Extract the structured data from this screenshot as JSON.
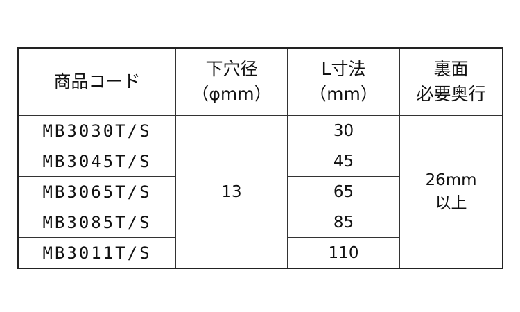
{
  "headers": {
    "code": "商品コード",
    "hole_line1": "下穴径",
    "hole_line2": "（φmm）",
    "length_line1": "L寸法",
    "length_line2": "（mm）",
    "depth_line1": "裏面",
    "depth_line2": "必要奥行"
  },
  "rows": [
    {
      "code": "MB3030T/S",
      "length": "30"
    },
    {
      "code": "MB3045T/S",
      "length": "45"
    },
    {
      "code": "MB3065T/S",
      "length": "65"
    },
    {
      "code": "MB3085T/S",
      "length": "85"
    },
    {
      "code": "MB3011T/S",
      "length": "110"
    }
  ],
  "hole_diameter": "13",
  "depth_line1": "26mm",
  "depth_line2": "以上"
}
